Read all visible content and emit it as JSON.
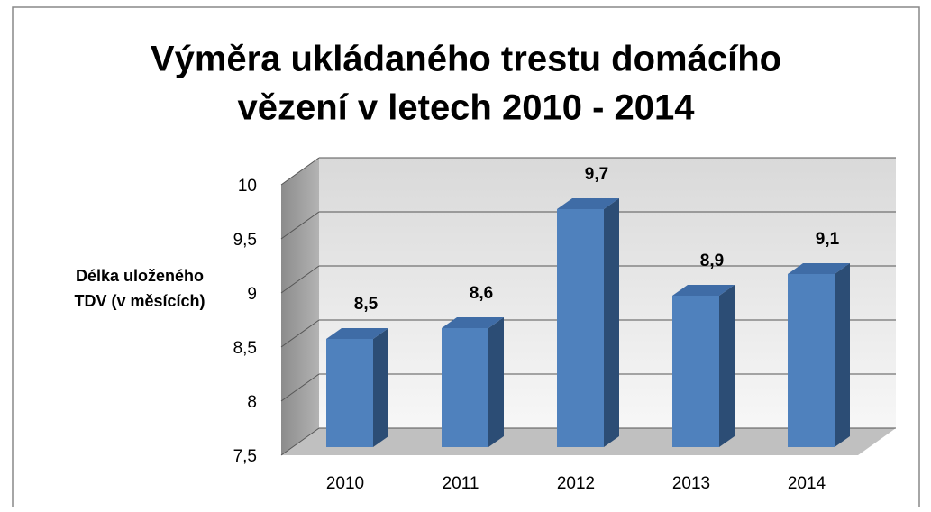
{
  "chart_data": {
    "type": "bar3d",
    "title": [
      "Výměra ukládaného trestu domácího",
      "vězení v letech 2010 - 2014"
    ],
    "y_label": [
      "Délka uloženého",
      "TDV (v měsících)"
    ],
    "categories": [
      "2010",
      "2011",
      "2012",
      "2013",
      "2014"
    ],
    "values": [
      8.5,
      8.6,
      9.7,
      8.9,
      9.1
    ],
    "value_labels": [
      "8,5",
      "8,6",
      "9,7",
      "8,9",
      "9,1"
    ],
    "color": "#4f81bd",
    "ylim": [
      7.5,
      10
    ],
    "yticks": [
      {
        "value": 7.5,
        "label": "7,5"
      },
      8,
      {
        "value": 8.5,
        "label": "8,5"
      },
      9,
      {
        "value": 9.5,
        "label": "9,5"
      },
      10
    ],
    "grid": true
  }
}
